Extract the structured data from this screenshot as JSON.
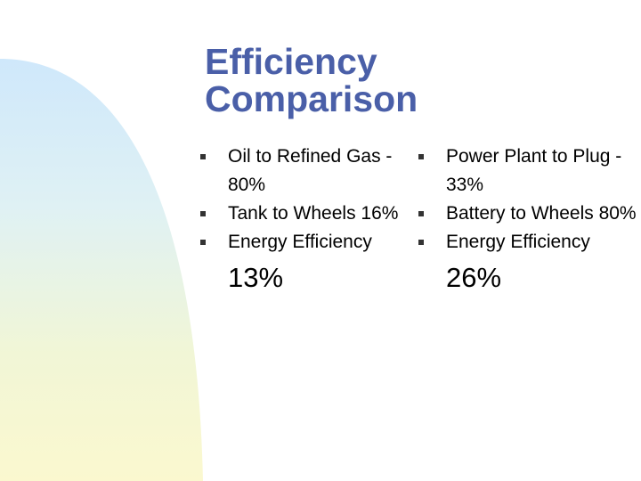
{
  "slide": {
    "title": "Efficiency\nComparison",
    "accent_color": "#4a5fa8",
    "bullet_icon": "square-bullet-icon"
  },
  "left_column": {
    "items": [
      {
        "text": "Oil to Refined Gas - 80%"
      },
      {
        "text": "Tank to Wheels 16%"
      },
      {
        "text": "Energy Efficiency",
        "value": "13%"
      }
    ]
  },
  "right_column": {
    "items": [
      {
        "text": "Power Plant to Plug - 33%"
      },
      {
        "text": "Battery to Wheels 80%"
      },
      {
        "text": "Energy Efficiency",
        "value": "26%"
      }
    ]
  }
}
